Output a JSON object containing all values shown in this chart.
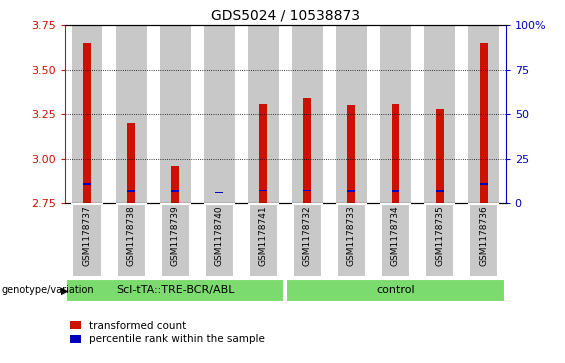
{
  "title": "GDS5024 / 10538873",
  "samples": [
    "GSM1178737",
    "GSM1178738",
    "GSM1178739",
    "GSM1178740",
    "GSM1178741",
    "GSM1178732",
    "GSM1178733",
    "GSM1178734",
    "GSM1178735",
    "GSM1178736"
  ],
  "red_values": [
    3.65,
    3.2,
    2.96,
    2.753,
    3.31,
    3.34,
    3.3,
    3.31,
    3.28,
    3.65
  ],
  "blue_values": [
    2.858,
    2.818,
    2.817,
    2.81,
    2.822,
    2.822,
    2.817,
    2.817,
    2.817,
    2.858
  ],
  "ymin": 2.75,
  "ymax": 3.75,
  "yticks": [
    2.75,
    3.0,
    3.25,
    3.5,
    3.75
  ],
  "group1_label": "Scl-tTA::TRE-BCR/ABL",
  "group2_label": "control",
  "group_bg_color": "#7CDB6E",
  "bar_bg_color": "#C8C8C8",
  "red_color": "#CC1100",
  "blue_color": "#0000BB",
  "label_red": "transformed count",
  "label_blue": "percentile rank within the sample",
  "right_yticks": [
    0,
    25,
    50,
    75,
    100
  ],
  "right_ylabels": [
    "0",
    "25",
    "50",
    "75",
    "100%"
  ]
}
